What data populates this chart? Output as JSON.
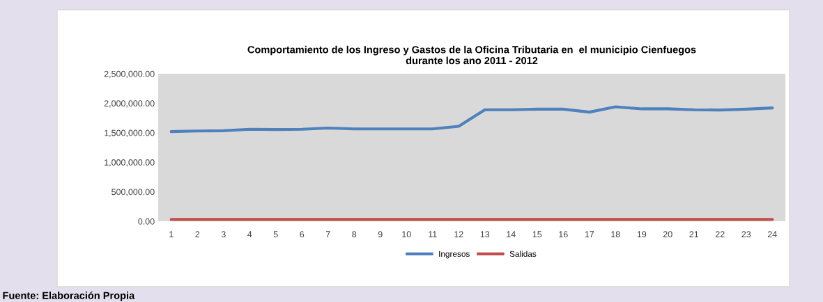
{
  "chart_data": {
    "type": "line",
    "title": "Comportamiento de los Ingreso y Gastos de la Oficina Tributaria en  el municipio Cienfuegos\ndurante los ano 2011 - 2012",
    "categories": [
      "1",
      "2",
      "3",
      "4",
      "5",
      "6",
      "7",
      "8",
      "9",
      "10",
      "11",
      "12",
      "13",
      "14",
      "15",
      "16",
      "17",
      "18",
      "19",
      "20",
      "21",
      "22",
      "23",
      "24"
    ],
    "series": [
      {
        "name": "Ingresos",
        "color": "#4f81bd",
        "values": [
          1520000,
          1530000,
          1535000,
          1560000,
          1555000,
          1560000,
          1580000,
          1565000,
          1565000,
          1565000,
          1565000,
          1610000,
          1890000,
          1890000,
          1900000,
          1900000,
          1850000,
          1940000,
          1905000,
          1905000,
          1890000,
          1885000,
          1900000,
          1920000
        ]
      },
      {
        "name": "Salidas",
        "color": "#c0504d",
        "values": [
          30000,
          30000,
          30000,
          30000,
          30000,
          30000,
          30000,
          30000,
          30000,
          30000,
          30000,
          30000,
          30000,
          30000,
          30000,
          30000,
          30000,
          30000,
          30000,
          30000,
          30000,
          30000,
          30000,
          30000
        ]
      }
    ],
    "ylim": [
      0,
      2500000
    ],
    "yticks": [
      {
        "value": 0,
        "label": "0.00"
      },
      {
        "value": 500000,
        "label": "500,000.00"
      },
      {
        "value": 1000000,
        "label": "1,000,000.00"
      },
      {
        "value": 1500000,
        "label": "1,500,000.00"
      },
      {
        "value": 2000000,
        "label": "2,000,000.00"
      },
      {
        "value": 2500000,
        "label": "2,500,000.00"
      }
    ],
    "grid": false,
    "legend": "bottom",
    "marker": "none",
    "line_style": "solid",
    "annotations": [
      "Fuente: Elaboración Propia"
    ]
  }
}
